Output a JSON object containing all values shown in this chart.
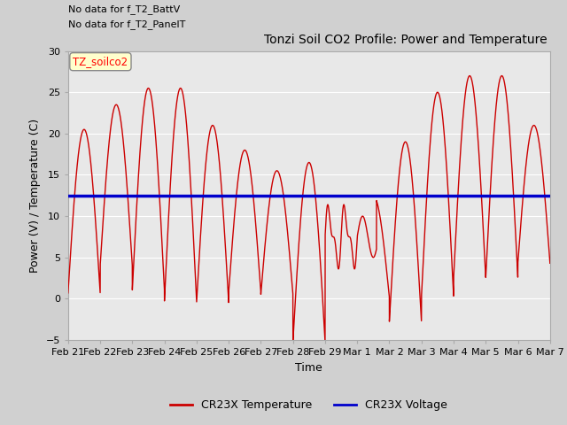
{
  "title": "Tonzi Soil CO2 Profile: Power and Temperature",
  "xlabel": "Time",
  "ylabel": "Power (V) / Temperature (C)",
  "ylim": [
    -5,
    30
  ],
  "yticks": [
    -5,
    0,
    5,
    10,
    15,
    20,
    25,
    30
  ],
  "annotation_line1": "No data for f_T2_BattV",
  "annotation_line2": "No data for f_T2_PanelT",
  "legend_label_box": "TZ_soilco2",
  "legend_temp": "CR23X Temperature",
  "legend_volt": "CR23X Voltage",
  "temp_color": "#cc0000",
  "volt_color": "#0000cc",
  "fig_bg_color": "#d0d0d0",
  "plot_bg_color": "#e8e8e8",
  "grid_color": "#ffffff",
  "x_tick_labels": [
    "Feb 21",
    "Feb 22",
    "Feb 23",
    "Feb 24",
    "Feb 25",
    "Feb 26",
    "Feb 27",
    "Feb 28",
    "Feb 29",
    "Mar 1",
    "Mar 2",
    "Mar 3",
    "Mar 4",
    "Mar 5",
    "Mar 6",
    "Mar 7"
  ],
  "voltage_value": 12.5
}
